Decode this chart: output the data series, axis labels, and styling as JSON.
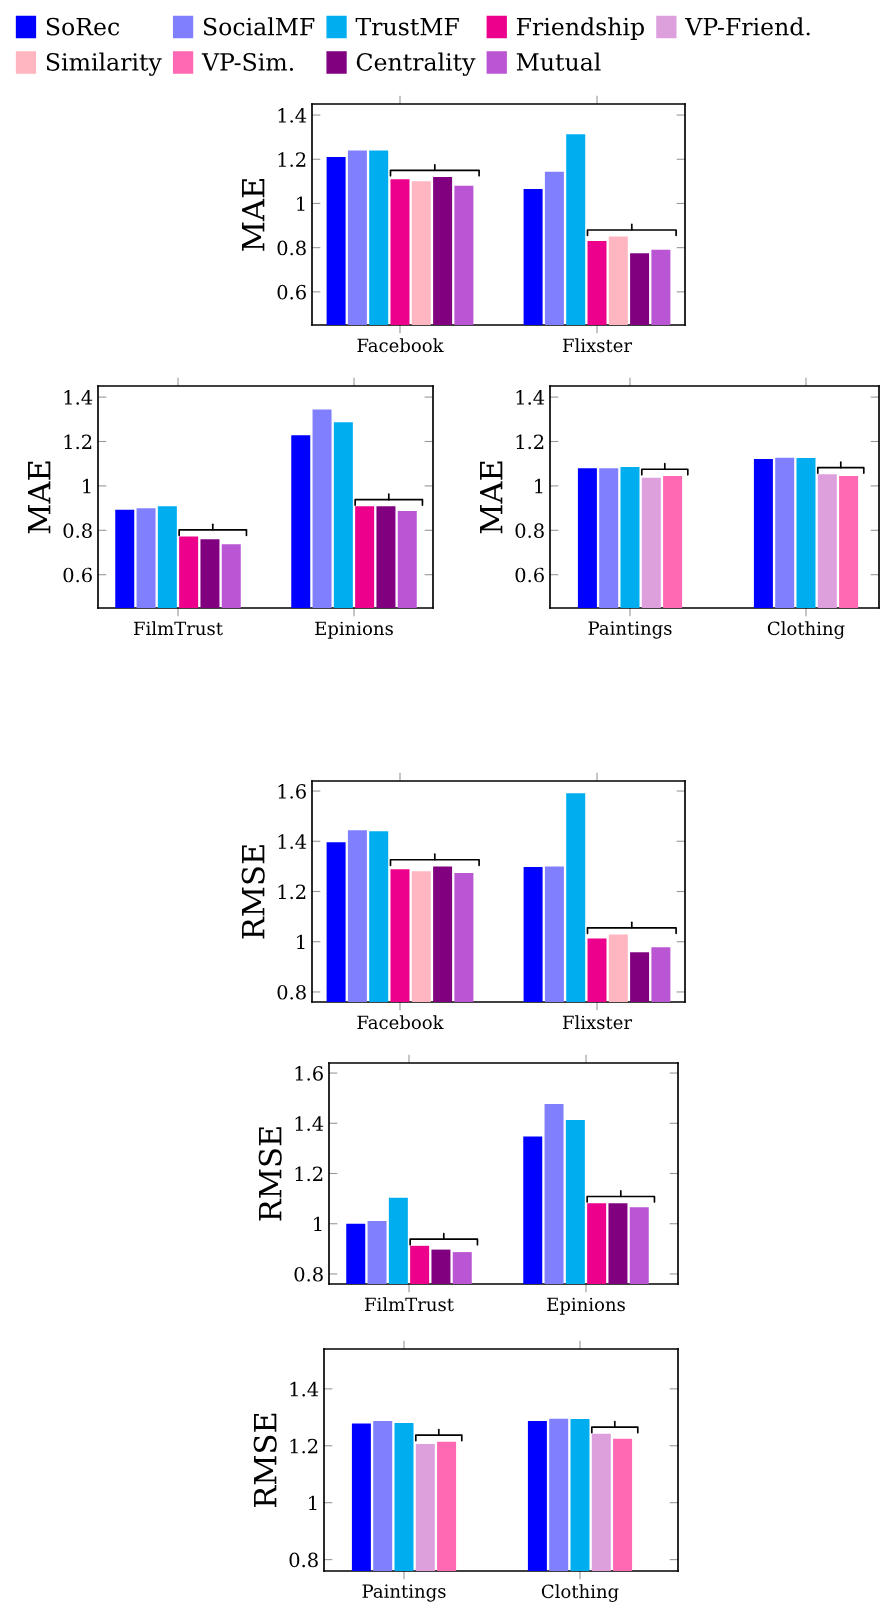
{
  "chart_data": [
    {
      "type": "bar",
      "ylabel": "MAE",
      "categories": [
        "Facebook",
        "Flixster"
      ],
      "ylim": [
        0.45,
        1.45
      ],
      "yticks": [
        0.6,
        0.8,
        1,
        1.2,
        1.4
      ],
      "grid": false,
      "legend": "top",
      "series": [
        {
          "name": "SoRec",
          "color": "#0000ff",
          "values": [
            1.21,
            1.065
          ]
        },
        {
          "name": "SocialMF",
          "color": "#8080ff",
          "values": [
            1.24,
            1.143
          ]
        },
        {
          "name": "TrustMF",
          "color": "#00aeef",
          "values": [
            1.24,
            1.313
          ]
        },
        {
          "name": "Friendship",
          "color": "#ec008c",
          "values": [
            1.11,
            0.83
          ]
        },
        {
          "name": "VP-Friend.",
          "color": "#dda0dd",
          "values": [
            null,
            null
          ]
        },
        {
          "name": "Similarity",
          "color": "#ffb6c1",
          "values": [
            1.1,
            0.85
          ]
        },
        {
          "name": "VP-Sim.",
          "color": "#ff69b4",
          "values": [
            null,
            null
          ]
        },
        {
          "name": "Centrality",
          "color": "#800080",
          "values": [
            1.12,
            0.775
          ]
        },
        {
          "name": "Mutual",
          "color": "#ba55d3",
          "values": [
            1.08,
            0.79
          ]
        }
      ]
    },
    {
      "type": "bar",
      "ylabel": "MAE",
      "categories": [
        "FilmTrust",
        "Epinions"
      ],
      "ylim": [
        0.45,
        1.45
      ],
      "yticks": [
        0.6,
        0.8,
        1,
        1.2,
        1.4
      ],
      "grid": false,
      "series": [
        {
          "color": "#0000ff",
          "values": [
            0.893,
            1.228
          ]
        },
        {
          "color": "#8080ff",
          "values": [
            0.899,
            1.344
          ]
        },
        {
          "color": "#00aeef",
          "values": [
            0.908,
            1.287
          ]
        },
        {
          "color": "#ec008c",
          "values": [
            0.772,
            0.908
          ]
        },
        {
          "color": "#800080",
          "values": [
            0.76,
            0.908
          ]
        },
        {
          "color": "#ba55d3",
          "values": [
            0.737,
            0.887
          ]
        }
      ]
    },
    {
      "type": "bar",
      "ylabel": "MAE",
      "categories": [
        "Paintings",
        "Clothing"
      ],
      "ylim": [
        0.45,
        1.45
      ],
      "yticks": [
        0.6,
        0.8,
        1,
        1.2,
        1.4
      ],
      "grid": false,
      "series": [
        {
          "color": "#0000ff",
          "values": [
            1.079,
            1.121
          ]
        },
        {
          "color": "#8080ff",
          "values": [
            1.08,
            1.127
          ]
        },
        {
          "color": "#00aeef",
          "values": [
            1.085,
            1.126
          ]
        },
        {
          "color": "#dda0dd",
          "values": [
            1.037,
            1.052
          ]
        },
        {
          "color": "#ff69b4",
          "values": [
            1.045,
            1.045
          ]
        }
      ]
    },
    {
      "type": "bar",
      "ylabel": "RMSE",
      "categories": [
        "Facebook",
        "Flixster"
      ],
      "ylim": [
        0.76,
        1.64
      ],
      "yticks": [
        0.8,
        1,
        1.2,
        1.4,
        1.6
      ],
      "grid": false,
      "series": [
        {
          "color": "#0000ff",
          "values": [
            1.396,
            1.298
          ]
        },
        {
          "color": "#8080ff",
          "values": [
            1.444,
            1.3
          ]
        },
        {
          "color": "#00aeef",
          "values": [
            1.44,
            1.591
          ]
        },
        {
          "color": "#ec008c",
          "values": [
            1.289,
            1.013
          ]
        },
        {
          "color": "#ffb6c1",
          "values": [
            1.281,
            1.029
          ]
        },
        {
          "color": "#800080",
          "values": [
            1.3,
            0.958
          ]
        },
        {
          "color": "#ba55d3",
          "values": [
            1.274,
            0.978
          ]
        }
      ]
    },
    {
      "type": "bar",
      "ylabel": "RMSE",
      "categories": [
        "FilmTrust",
        "Epinions"
      ],
      "ylim": [
        0.76,
        1.64
      ],
      "yticks": [
        0.8,
        1,
        1.2,
        1.4,
        1.6
      ],
      "grid": false,
      "series": [
        {
          "color": "#0000ff",
          "values": [
            1.0,
            1.347
          ]
        },
        {
          "color": "#8080ff",
          "values": [
            1.011,
            1.477
          ]
        },
        {
          "color": "#00aeef",
          "values": [
            1.103,
            1.413
          ]
        },
        {
          "color": "#ec008c",
          "values": [
            0.912,
            1.082
          ]
        },
        {
          "color": "#800080",
          "values": [
            0.897,
            1.082
          ]
        },
        {
          "color": "#ba55d3",
          "values": [
            0.887,
            1.066
          ]
        }
      ]
    },
    {
      "type": "bar",
      "ylabel": "RMSE",
      "categories": [
        "Paintings",
        "Clothing"
      ],
      "ylim": [
        0.76,
        1.54
      ],
      "yticks": [
        0.8,
        1,
        1.2,
        1.4
      ],
      "grid": false,
      "series": [
        {
          "color": "#0000ff",
          "values": [
            1.278,
            1.287
          ]
        },
        {
          "color": "#8080ff",
          "values": [
            1.287,
            1.295
          ]
        },
        {
          "color": "#00aeef",
          "values": [
            1.28,
            1.294
          ]
        },
        {
          "color": "#dda0dd",
          "values": [
            1.206,
            1.242
          ]
        },
        {
          "color": "#ff69b4",
          "values": [
            1.214,
            1.225
          ]
        }
      ]
    }
  ]
}
